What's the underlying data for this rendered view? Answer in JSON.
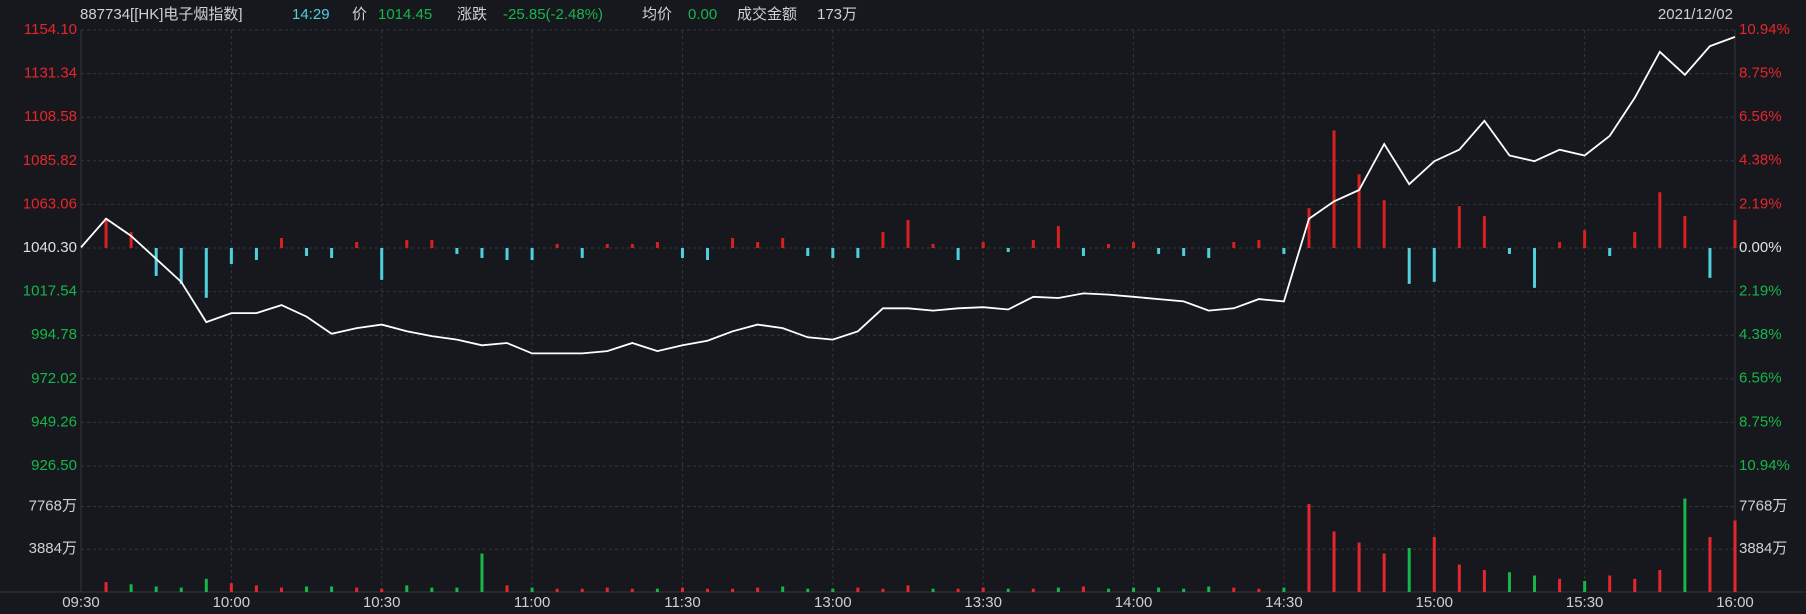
{
  "header": {
    "name": "887734[[HK]电子烟指数]",
    "time": "14:29",
    "price_label": "价",
    "price": "1014.45",
    "change_label": "涨跌",
    "change": "-25.85(-2.48%)",
    "avg_label": "均价",
    "avg": "0.00",
    "amount_label": "成交金额",
    "amount": "173万",
    "date": "2021/12/02"
  },
  "chart_data": [
    {
      "type": "line",
      "color": "#ffffff",
      "colors": {
        "up": "#e5262d",
        "down": "#17b64a",
        "flat": "#e0e0e0"
      },
      "flow_colors": {
        "up": "#d8201f",
        "down": "#4fd0dc"
      },
      "grid": true,
      "xlim": [
        0,
        330
      ],
      "xticks": [
        {
          "value": 0,
          "label": "09:30"
        },
        {
          "value": 30,
          "label": "10:00"
        },
        {
          "value": 60,
          "label": "10:30"
        },
        {
          "value": 90,
          "label": "11:00"
        },
        {
          "value": 120,
          "label": "11:30"
        },
        {
          "value": 150,
          "label": "13:00"
        },
        {
          "value": 180,
          "label": "13:30"
        },
        {
          "value": 210,
          "label": "14:00"
        },
        {
          "value": 240,
          "label": "14:30"
        },
        {
          "value": 270,
          "label": "15:00"
        },
        {
          "value": 300,
          "label": "15:30"
        },
        {
          "value": 330,
          "label": "16:00"
        }
      ],
      "ylim": [
        926.5,
        1154.1
      ],
      "yticks": [
        {
          "value": 1154.1,
          "label": "1154.10"
        },
        {
          "value": 1131.34,
          "label": "1131.34"
        },
        {
          "value": 1108.58,
          "label": "1108.58"
        },
        {
          "value": 1085.82,
          "label": "1085.82"
        },
        {
          "value": 1063.06,
          "label": "1063.06"
        },
        {
          "value": 1040.3,
          "label": "1040.30"
        },
        {
          "value": 1017.54,
          "label": "1017.54"
        },
        {
          "value": 994.78,
          "label": "994.78"
        },
        {
          "value": 972.02,
          "label": "972.02"
        },
        {
          "value": 949.26,
          "label": "949.26"
        },
        {
          "value": 926.5,
          "label": "926.50"
        }
      ],
      "y2lim": [
        -10.94,
        10.94
      ],
      "y2ticks": [
        {
          "value": 10.94,
          "label": "10.94%"
        },
        {
          "value": 8.75,
          "label": "8.75%"
        },
        {
          "value": 6.56,
          "label": "6.56%"
        },
        {
          "value": 4.38,
          "label": "4.38%"
        },
        {
          "value": 2.19,
          "label": "2.19%"
        },
        {
          "value": 0,
          "label": "0.00%"
        },
        {
          "value": -2.19,
          "label": "2.19%"
        },
        {
          "value": -4.38,
          "label": "4.38%"
        },
        {
          "value": -6.56,
          "label": "6.56%"
        },
        {
          "value": -8.75,
          "label": "8.75%"
        },
        {
          "value": -10.94,
          "label": "10.94%"
        }
      ],
      "x": [
        0,
        5,
        10,
        15,
        20,
        25,
        30,
        35,
        40,
        45,
        50,
        55,
        60,
        65,
        70,
        75,
        80,
        85,
        90,
        95,
        100,
        105,
        110,
        115,
        120,
        125,
        130,
        135,
        140,
        145,
        150,
        155,
        160,
        165,
        170,
        175,
        180,
        185,
        190,
        195,
        200,
        205,
        210,
        215,
        220,
        225,
        230,
        235,
        240,
        245,
        250,
        255,
        260,
        265,
        270,
        275,
        280,
        285,
        290,
        295,
        300,
        305,
        310,
        315,
        320,
        325,
        330
      ],
      "values": [
        1040.6,
        1055.6,
        1046.6,
        1034.6,
        1022.6,
        1001.6,
        1006.3,
        1006.3,
        1010.5,
        1004.5,
        995.5,
        998.5,
        1000.3,
        996.8,
        994.3,
        992.5,
        989.5,
        990.7,
        985.3,
        985.3,
        985.3,
        986.5,
        990.7,
        986.5,
        989.5,
        991.9,
        996.8,
        1000.3,
        998.5,
        993.7,
        992.5,
        996.8,
        1008.8,
        1008.8,
        1007.6,
        1008.8,
        1009.4,
        1008.2,
        1014.8,
        1014.2,
        1016.6,
        1016.0,
        1014.8,
        1013.6,
        1012.4,
        1007.6,
        1008.8,
        1013.6,
        1012.4,
        1055.6,
        1064.6,
        1070.6,
        1094.6,
        1073.6,
        1085.6,
        1091.6,
        1106.7,
        1088.6,
        1085.6,
        1091.6,
        1088.6,
        1098.8,
        1118.7,
        1142.7,
        1130.7,
        1145.7,
        1150.5
      ],
      "flow": {
        "axis": "y2",
        "x": [
          5,
          10,
          15,
          20,
          25,
          30,
          35,
          40,
          45,
          50,
          55,
          60,
          65,
          70,
          75,
          80,
          85,
          90,
          95,
          100,
          105,
          110,
          115,
          120,
          125,
          130,
          135,
          140,
          145,
          150,
          155,
          160,
          165,
          170,
          175,
          180,
          185,
          190,
          195,
          200,
          205,
          210,
          215,
          220,
          225,
          230,
          235,
          240,
          245,
          250,
          255,
          260,
          265,
          270,
          275,
          280,
          285,
          290,
          295,
          300,
          305,
          310,
          315,
          320,
          325,
          330
        ],
        "values": [
          1.5,
          0.8,
          -1.4,
          -1.8,
          -2.5,
          -0.8,
          -0.6,
          0.5,
          -0.4,
          -0.5,
          0.3,
          -1.6,
          0.4,
          0.4,
          -0.3,
          -0.5,
          -0.6,
          -0.6,
          0.2,
          -0.5,
          0.2,
          0.2,
          0.3,
          -0.5,
          -0.6,
          0.5,
          0.3,
          0.5,
          -0.4,
          -0.5,
          -0.5,
          0.8,
          1.4,
          0.2,
          -0.6,
          0.3,
          -0.2,
          0.4,
          1.1,
          -0.4,
          0.2,
          0.3,
          -0.3,
          -0.4,
          -0.5,
          0.3,
          0.4,
          -0.3,
          2.0,
          5.9,
          3.7,
          2.4,
          -1.8,
          -1.7,
          2.1,
          1.6,
          -0.3,
          -2.0,
          0.3,
          0.9,
          -0.4,
          0.8,
          2.8,
          1.6,
          -1.5,
          1.4
        ]
      }
    },
    {
      "type": "bar",
      "colors": {
        "up": "#e5262d",
        "down": "#17b64a"
      },
      "grid": true,
      "xlim": [
        0,
        330
      ],
      "ylim": [
        0,
        11000
      ],
      "yticks": [
        {
          "value": 3884,
          "label": "3884万"
        },
        {
          "value": 7768,
          "label": "7768万"
        }
      ],
      "x": [
        5,
        10,
        15,
        20,
        25,
        30,
        35,
        40,
        45,
        50,
        55,
        60,
        65,
        70,
        75,
        80,
        85,
        90,
        95,
        100,
        105,
        110,
        115,
        120,
        125,
        130,
        135,
        140,
        145,
        150,
        155,
        160,
        165,
        170,
        175,
        180,
        185,
        190,
        195,
        200,
        205,
        210,
        215,
        220,
        225,
        230,
        235,
        240,
        245,
        250,
        255,
        260,
        265,
        270,
        275,
        280,
        285,
        290,
        295,
        300,
        305,
        310,
        315,
        320,
        325,
        330
      ],
      "values": [
        900,
        700,
        500,
        400,
        1200,
        800,
        600,
        400,
        500,
        500,
        400,
        300,
        600,
        400,
        400,
        3500,
        600,
        400,
        300,
        300,
        400,
        300,
        300,
        400,
        300,
        300,
        400,
        500,
        300,
        300,
        400,
        300,
        600,
        300,
        300,
        400,
        300,
        300,
        400,
        500,
        300,
        400,
        400,
        300,
        500,
        400,
        300,
        400,
        8000,
        5500,
        4500,
        3500,
        4000,
        5000,
        2500,
        2000,
        1800,
        1500,
        1200,
        1000,
        1500,
        1200,
        2000,
        8500,
        5000,
        6500
      ]
    }
  ]
}
